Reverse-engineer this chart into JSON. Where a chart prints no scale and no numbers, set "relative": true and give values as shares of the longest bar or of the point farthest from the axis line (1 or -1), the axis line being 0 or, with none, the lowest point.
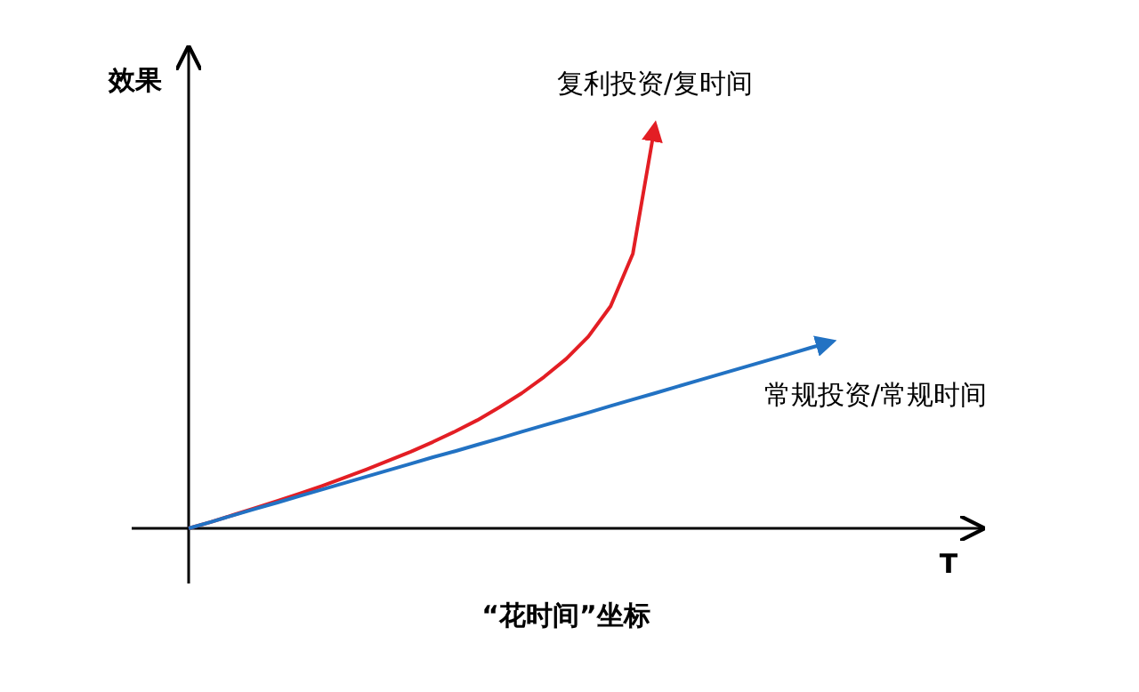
{
  "chart_data": {
    "type": "line",
    "relative": true,
    "ylabel": "效果",
    "xlabel": "“花时间”坐标",
    "annotations": [
      "T"
    ],
    "categories": [
      null,
      null,
      null,
      null,
      null,
      null,
      null,
      null,
      null,
      null,
      null,
      null,
      null,
      null,
      null,
      null,
      null,
      null,
      null,
      null,
      null,
      null,
      null,
      null,
      null,
      null,
      null,
      null,
      null,
      null
    ],
    "series": [
      {
        "name": "复利投资/复时间",
        "color": "#e31e24",
        "values": [
          0,
          0.016,
          0.033,
          0.05,
          0.068,
          0.086,
          0.105,
          0.125,
          0.146,
          0.168,
          0.19,
          0.214,
          0.24,
          0.268,
          0.3,
          0.335,
          0.375,
          0.42,
          0.475,
          0.55,
          0.68,
          1,
          null,
          null,
          null,
          null,
          null,
          null,
          null,
          null
        ]
      },
      {
        "name": "常规投资/常规时间",
        "color": "#2272c3",
        "values": [
          0,
          0.016,
          0.032,
          0.048,
          0.064,
          0.08,
          0.096,
          0.112,
          0.128,
          0.144,
          0.16,
          0.176,
          0.191,
          0.207,
          0.223,
          0.239,
          0.255,
          0.271,
          0.287,
          0.303,
          0.319,
          0.335,
          0.351,
          0.367,
          0.383,
          0.399,
          0.415,
          0.431,
          0.447,
          0.463
        ]
      }
    ]
  }
}
